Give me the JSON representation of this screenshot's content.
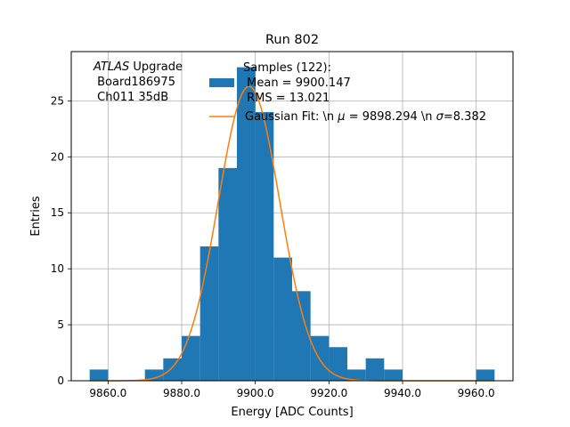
{
  "chart_data": {
    "type": "bar",
    "title": "Run 802",
    "xlabel": "Energy [ADC Counts]",
    "ylabel": "Entries",
    "xlim": [
      9850,
      9970
    ],
    "ylim": [
      0,
      29.4
    ],
    "grid": true,
    "xticks": [
      9860,
      9880,
      9900,
      9920,
      9940,
      9960
    ],
    "xtick_labels": [
      "9860.0",
      "9880.0",
      "9900.0",
      "9920.0",
      "9940.0",
      "9960.0"
    ],
    "yticks": [
      0,
      5,
      10,
      15,
      20,
      25
    ],
    "ytick_labels": [
      "0",
      "5",
      "10",
      "15",
      "20",
      "25"
    ],
    "annotation": {
      "line1_italic": "ATLAS",
      "line1_rest": " Upgrade",
      "line2": " Board186975",
      "line3": " Ch011 35dB"
    },
    "histogram": {
      "bin_edges": [
        9855,
        9860,
        9865,
        9870,
        9875,
        9880,
        9885,
        9890,
        9895,
        9900,
        9905,
        9910,
        9915,
        9920,
        9925,
        9930,
        9935,
        9940,
        9945,
        9950,
        9955,
        9960,
        9965
      ],
      "counts": [
        1,
        0,
        0,
        1,
        2,
        4,
        12,
        19,
        28,
        24,
        11,
        8,
        4,
        3,
        1,
        2,
        1,
        0,
        0,
        0,
        0,
        1
      ],
      "color": "#1f77b4"
    },
    "gaussian_fit": {
      "mu": 9898.294,
      "sigma": 8.382,
      "amplitude": 26.3,
      "color": "#ff7f0e"
    },
    "legend": {
      "position": "upper-right",
      "hist_label_line1": "Samples (122):",
      "hist_label_line2": " Mean = 9900.147",
      "hist_label_line3": " RMS = 13.021",
      "fit_label_prefix": "Gaussian Fit: \\n ",
      "fit_label_mu_symbol": "μ",
      "fit_label_mu_value": " = 9898.294 \\n ",
      "fit_label_sigma_symbol": "σ",
      "fit_label_sigma_value": "=8.382"
    }
  }
}
